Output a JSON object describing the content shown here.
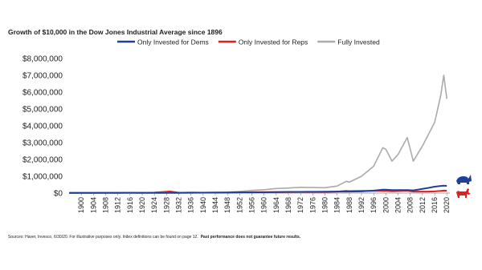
{
  "chart_data": {
    "type": "line",
    "title": "Growth of $10,000 in the Dow Jones Industrial Average since 1896",
    "x": [
      1896,
      1900,
      1904,
      1908,
      1912,
      1916,
      1920,
      1924,
      1928,
      1929,
      1932,
      1936,
      1940,
      1944,
      1948,
      1952,
      1956,
      1960,
      1964,
      1968,
      1972,
      1976,
      1980,
      1984,
      1987,
      1988,
      1992,
      1996,
      1999,
      2000,
      2002,
      2004,
      2007,
      2009,
      2012,
      2014,
      2016,
      2018,
      2019,
      2020
    ],
    "series": [
      {
        "name": "Only Invested for Dems",
        "color": "#1f3f99",
        "values": [
          10000,
          12000,
          13000,
          14000,
          15000,
          16000,
          15000,
          15000,
          15000,
          15000,
          15000,
          20000,
          25000,
          30000,
          35000,
          40000,
          40000,
          45000,
          60000,
          70000,
          70000,
          80000,
          85000,
          90000,
          90000,
          90000,
          100000,
          150000,
          200000,
          200000,
          180000,
          180000,
          180000,
          160000,
          250000,
          310000,
          380000,
          420000,
          440000,
          430000
        ]
      },
      {
        "name": "Only Invested for Reps",
        "color": "#e02020",
        "values": [
          10000,
          12000,
          14000,
          18000,
          20000,
          20000,
          18000,
          30000,
          80000,
          100000,
          25000,
          25000,
          25000,
          25000,
          25000,
          40000,
          55000,
          60000,
          60000,
          60000,
          70000,
          65000,
          65000,
          90000,
          130000,
          120000,
          130000,
          130000,
          130000,
          130000,
          110000,
          120000,
          140000,
          90000,
          90000,
          90000,
          100000,
          130000,
          150000,
          140000
        ]
      },
      {
        "name": "Fully Invested",
        "color": "#aaaaaa",
        "values": [
          10000,
          14000,
          16000,
          20000,
          25000,
          30000,
          25000,
          40000,
          90000,
          100000,
          30000,
          50000,
          40000,
          50000,
          60000,
          100000,
          160000,
          200000,
          270000,
          300000,
          340000,
          330000,
          320000,
          420000,
          700000,
          650000,
          1000000,
          1600000,
          2700000,
          2600000,
          1900000,
          2300000,
          3300000,
          1900000,
          2800000,
          3500000,
          4200000,
          5800000,
          7000000,
          5600000
        ]
      }
    ],
    "xlim": [
      1896,
      2021
    ],
    "xticks": [
      1900,
      1904,
      1908,
      1912,
      1916,
      1920,
      1924,
      1928,
      1932,
      1936,
      1940,
      1944,
      1948,
      1952,
      1956,
      1960,
      1964,
      1968,
      1972,
      1976,
      1980,
      1984,
      1988,
      1992,
      1996,
      2000,
      2004,
      2008,
      2012,
      2016,
      2020
    ],
    "ylim": [
      0,
      8000000
    ],
    "yticks": [
      {
        "value": 0,
        "label": "$0"
      },
      {
        "value": 1000000,
        "label": "$1,000,000"
      },
      {
        "value": 2000000,
        "label": "$2,000,000"
      },
      {
        "value": 3000000,
        "label": "$3,000,000"
      },
      {
        "value": 4000000,
        "label": "$4,000,000"
      },
      {
        "value": 5000000,
        "label": "$5,000,000"
      },
      {
        "value": 6000000,
        "label": "$6,000,000"
      },
      {
        "value": 7000000,
        "label": "$7,000,000"
      },
      {
        "value": 8000000,
        "label": "$8,000,000"
      }
    ],
    "grid": false,
    "legend": "top"
  },
  "footer": {
    "text": "Sources: Haver, Invesco, 6/30/20. For illustrative purposes only. Index definitions can be found on page 12.",
    "bold": "Past performance does not guarantee future results."
  }
}
